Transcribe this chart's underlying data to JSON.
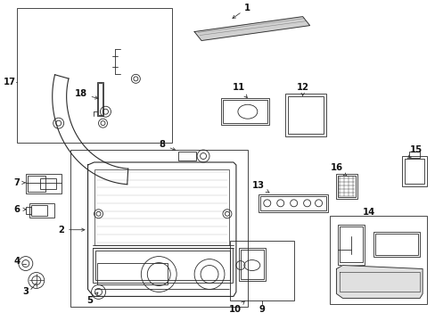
{
  "bg_color": "#ffffff",
  "lc": "#2a2a2a",
  "lw_thin": 0.6,
  "lw_med": 0.8,
  "figsize": [
    4.89,
    3.6
  ],
  "dpi": 100
}
